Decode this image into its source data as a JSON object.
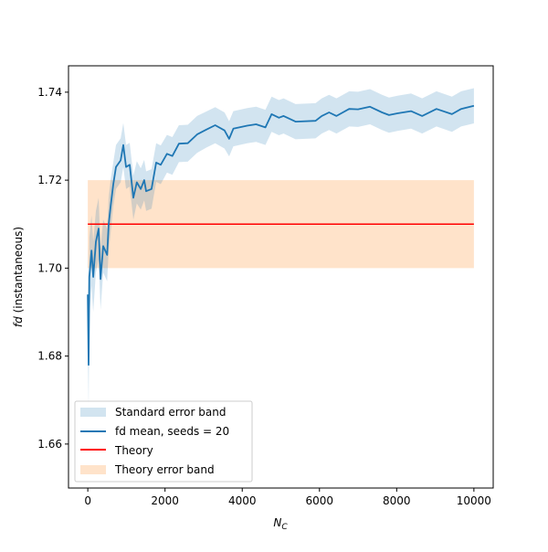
{
  "chart_data": {
    "type": "line",
    "title": "",
    "xlabel": "N_C",
    "ylabel_italic": "fd",
    "ylabel_rest": " (instantaneous)",
    "xlim": [
      -500,
      10500
    ],
    "ylim": [
      1.65,
      1.746
    ],
    "xticks": [
      0,
      2000,
      4000,
      6000,
      8000,
      10000
    ],
    "xtick_labels": [
      "0",
      "2000",
      "4000",
      "6000",
      "8000",
      "10000"
    ],
    "yticks": [
      1.66,
      1.68,
      1.7,
      1.72,
      1.74
    ],
    "ytick_labels": [
      "1.66",
      "1.68",
      "1.70",
      "1.72",
      "1.74"
    ],
    "grid": false,
    "legend_placement": "lower-left",
    "legend": [
      "Standard error band",
      "fd mean, seeds = 20",
      "Theory",
      "Theory error band"
    ],
    "colors": {
      "mean": "#1f77b4",
      "stderr_band": "#1f77b4",
      "theory": "#ff0000",
      "theory_band": "#ffdcbd"
    },
    "theory": {
      "value": 1.71,
      "error": 0.01,
      "x_range": [
        0,
        10000
      ]
    },
    "series": [
      {
        "name": "fd mean, seeds = 20",
        "x": [
          0,
          20,
          40,
          95,
          140,
          210,
          280,
          330,
          400,
          500,
          540,
          590,
          660,
          730,
          850,
          920,
          990,
          1085,
          1180,
          1270,
          1370,
          1460,
          1510,
          1650,
          1770,
          1890,
          2050,
          2190,
          2360,
          2590,
          2830,
          3070,
          3300,
          3540,
          3660,
          3770,
          4130,
          4360,
          4600,
          4760,
          4950,
          5070,
          5380,
          5900,
          6060,
          6250,
          6440,
          6770,
          7000,
          7310,
          7620,
          7800,
          8020,
          8370,
          8660,
          9030,
          9430,
          9670,
          10000
        ],
        "y": [
          1.694,
          1.678,
          1.698,
          1.704,
          1.698,
          1.706,
          1.709,
          1.6975,
          1.705,
          1.703,
          1.71,
          1.714,
          1.719,
          1.723,
          1.7245,
          1.728,
          1.723,
          1.7235,
          1.716,
          1.7195,
          1.718,
          1.72,
          1.7175,
          1.718,
          1.724,
          1.7235,
          1.726,
          1.7255,
          1.7283,
          1.7284,
          1.7304,
          1.7315,
          1.7325,
          1.7313,
          1.7294,
          1.7317,
          1.7324,
          1.7327,
          1.732,
          1.735,
          1.7342,
          1.7346,
          1.7333,
          1.7335,
          1.7346,
          1.7354,
          1.7346,
          1.7362,
          1.7361,
          1.7367,
          1.7354,
          1.7348,
          1.7352,
          1.7357,
          1.7346,
          1.7362,
          1.735,
          1.7362,
          1.7369
        ],
        "stderr": [
          0.012,
          0.01,
          0.009,
          0.008,
          0.008,
          0.007,
          0.007,
          0.007,
          0.006,
          0.006,
          0.006,
          0.006,
          0.005,
          0.005,
          0.005,
          0.005,
          0.005,
          0.005,
          0.005,
          0.0048,
          0.0047,
          0.0046,
          0.0045,
          0.0045,
          0.0044,
          0.0044,
          0.0043,
          0.0043,
          0.0042,
          0.0042,
          0.0042,
          0.0041,
          0.0041,
          0.0041,
          0.004,
          0.004,
          0.004,
          0.004,
          0.004,
          0.004,
          0.004,
          0.004,
          0.004,
          0.004,
          0.004,
          0.004,
          0.004,
          0.004,
          0.004,
          0.004,
          0.004,
          0.004,
          0.004,
          0.004,
          0.004,
          0.004,
          0.004,
          0.004,
          0.004
        ]
      }
    ]
  }
}
